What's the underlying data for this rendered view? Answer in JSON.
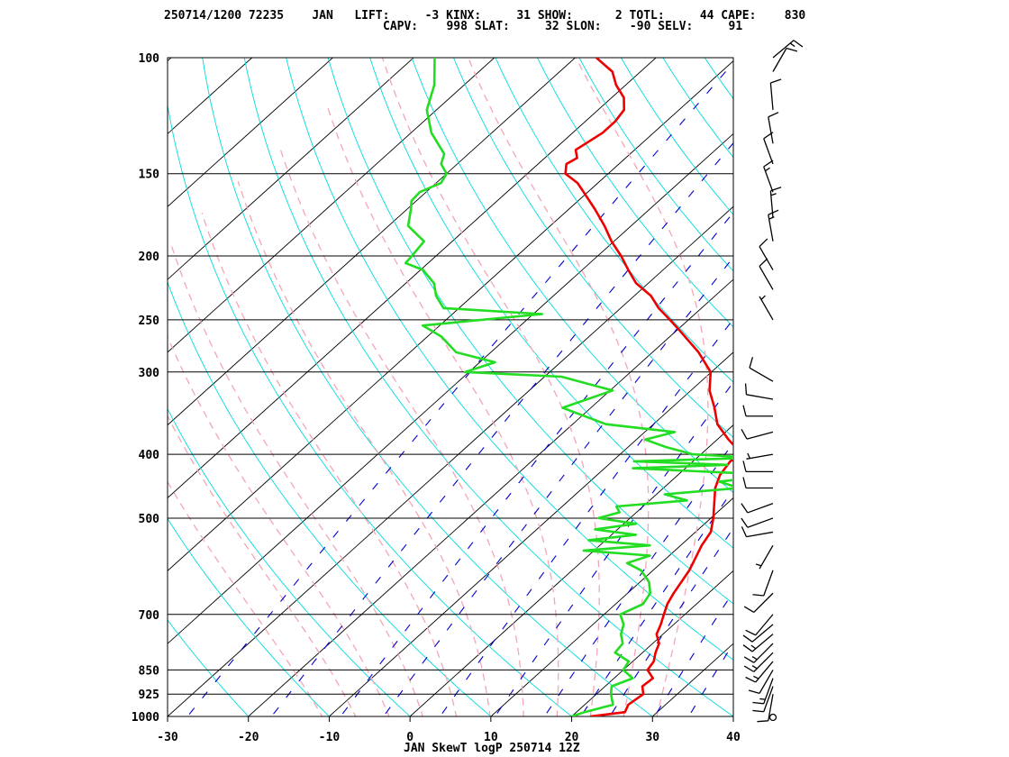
{
  "header": {
    "line1": "250714/1200 72235    JAN   LIFT:     -3 KINX:     31 SHOW:      2 TOTL:     44 CAPE:    830",
    "line2": "CAPV:    998 SLAT:     32 SLON:    -90 SELV:     91"
  },
  "chart_data": {
    "type": "line",
    "title": "JAN SkewT logP 250714 12Z",
    "xlabel": "",
    "ylabel": "",
    "x_axis_ticks": [
      -30,
      -20,
      -10,
      0,
      10,
      20,
      30,
      40
    ],
    "y_axis_ticks": [
      100,
      150,
      200,
      250,
      300,
      400,
      500,
      700,
      850,
      925,
      1000
    ],
    "xlim": [
      -30,
      40
    ],
    "ylim": [
      1000,
      100
    ],
    "y_scale": "log",
    "grid": true,
    "colors": {
      "temperature": "#ee0000",
      "dewpoint": "#22dd22",
      "isotherm": "#000000",
      "dry_adiabat": "#00dddd",
      "moist_adiabat": "#f4a6b4",
      "mixing_ratio": "#0000cc",
      "wind": "#000000"
    },
    "series": [
      {
        "key": "temperature",
        "pressure": [
          1000,
          985,
          960,
          925,
          900,
          875,
          850,
          825,
          800,
          775,
          750,
          725,
          700,
          675,
          650,
          600,
          550,
          525,
          500,
          475,
          450,
          430,
          410,
          400,
          380,
          360,
          340,
          320,
          300,
          280,
          260,
          250,
          240,
          230,
          220,
          210,
          200,
          190,
          180,
          170,
          160,
          155,
          150,
          145,
          142,
          138,
          130,
          125,
          120,
          115,
          110,
          105,
          100
        ],
        "values": [
          22.3,
          26.0,
          25.4,
          25.8,
          24.6,
          24.8,
          23.0,
          22.6,
          21.6,
          20.8,
          19.2,
          18.4,
          17.4,
          16.4,
          15.7,
          14.5,
          12.6,
          11.9,
          10.3,
          8.4,
          6.4,
          5.2,
          4.6,
          5.1,
          1.4,
          -2.1,
          -4.7,
          -7.7,
          -10.1,
          -14.3,
          -19.5,
          -22.3,
          -25.3,
          -27.9,
          -31.5,
          -34.3,
          -37.1,
          -40.3,
          -43.3,
          -46.7,
          -50.5,
          -52.5,
          -55.3,
          -56.5,
          -56.0,
          -57.3,
          -56.3,
          -56.3,
          -56.8,
          -58.5,
          -61.2,
          -63.5,
          -67.4
        ]
      },
      {
        "key": "dewpoint",
        "pressure": [
          1000,
          985,
          960,
          925,
          900,
          875,
          850,
          825,
          800,
          775,
          750,
          725,
          700,
          675,
          650,
          625,
          600,
          585,
          570,
          560,
          550,
          540,
          530,
          520,
          510,
          500,
          490,
          480,
          470,
          460,
          450,
          440,
          430,
          420,
          415,
          410,
          405,
          400,
          390,
          380,
          370,
          360,
          340,
          320,
          305,
          300,
          290,
          280,
          265,
          255,
          245,
          240,
          230,
          220,
          210,
          205,
          200,
          190,
          180,
          170,
          165,
          160,
          155,
          150,
          145,
          140,
          130,
          120,
          110,
          100
        ],
        "values": [
          20.0,
          21.0,
          23.5,
          21.8,
          20.8,
          22.3,
          20.0,
          19.5,
          16.6,
          16.3,
          14.8,
          13.8,
          12.0,
          13.4,
          12.8,
          11.1,
          8.5,
          5.8,
          7.6,
          -1.3,
          6.2,
          -2.1,
          3.0,
          -2.8,
          1.5,
          -3.9,
          -2.1,
          -3.3,
          4.6,
          1.0,
          9.3,
          6.0,
          12.4,
          -6.5,
          4.7,
          -7.3,
          7.2,
          -1.0,
          -5.3,
          -8.9,
          -6.3,
          -15.9,
          -23.5,
          -19.7,
          -27.9,
          -40.5,
          -38.1,
          -44.3,
          -48.3,
          -52.1,
          -38.9,
          -51.9,
          -54.5,
          -56.5,
          -59.7,
          -62.8,
          -63.0,
          -63.5,
          -67.6,
          -69.5,
          -70.6,
          -70.8,
          -69.4,
          -70.0,
          -72.0,
          -73.0,
          -77.5,
          -81.2,
          -83.7,
          -87.4
        ]
      }
    ],
    "wind_barbs": [
      {
        "p": 1000,
        "dir": 0,
        "spd": 0
      },
      {
        "p": 925,
        "dir": 190,
        "spd": 10
      },
      {
        "p": 900,
        "dir": 200,
        "spd": 10
      },
      {
        "p": 875,
        "dir": 200,
        "spd": 15
      },
      {
        "p": 850,
        "dir": 210,
        "spd": 10
      },
      {
        "p": 825,
        "dir": 220,
        "spd": 15
      },
      {
        "p": 800,
        "dir": 225,
        "spd": 15
      },
      {
        "p": 775,
        "dir": 225,
        "spd": 15
      },
      {
        "p": 750,
        "dir": 230,
        "spd": 15
      },
      {
        "p": 725,
        "dir": 230,
        "spd": 10
      },
      {
        "p": 700,
        "dir": 220,
        "spd": 10
      },
      {
        "p": 650,
        "dir": 225,
        "spd": 10
      },
      {
        "p": 600,
        "dir": 200,
        "spd": 10
      },
      {
        "p": 550,
        "dir": 210,
        "spd": 5
      },
      {
        "p": 525,
        "dir": 260,
        "spd": 10
      },
      {
        "p": 500,
        "dir": 250,
        "spd": 10
      },
      {
        "p": 475,
        "dir": 250,
        "spd": 10
      },
      {
        "p": 450,
        "dir": 270,
        "spd": 10
      },
      {
        "p": 425,
        "dir": 270,
        "spd": 10
      },
      {
        "p": 400,
        "dir": 260,
        "spd": 5
      },
      {
        "p": 370,
        "dir": 255,
        "spd": 10
      },
      {
        "p": 350,
        "dir": 270,
        "spd": 10
      },
      {
        "p": 330,
        "dir": 280,
        "spd": 10
      },
      {
        "p": 310,
        "dir": 300,
        "spd": 10
      },
      {
        "p": 250,
        "dir": 330,
        "spd": 5
      },
      {
        "p": 225,
        "dir": 330,
        "spd": 10
      },
      {
        "p": 210,
        "dir": 330,
        "spd": 10
      },
      {
        "p": 190,
        "dir": 350,
        "spd": 15
      },
      {
        "p": 175,
        "dir": 355,
        "spd": 15
      },
      {
        "p": 160,
        "dir": 340,
        "spd": 15
      },
      {
        "p": 145,
        "dir": 340,
        "spd": 10
      },
      {
        "p": 135,
        "dir": 350,
        "spd": 10
      },
      {
        "p": 120,
        "dir": 355,
        "spd": 10
      },
      {
        "p": 105,
        "dir": 30,
        "spd": 10
      },
      {
        "p": 100,
        "dir": 50,
        "spd": 15
      }
    ]
  }
}
